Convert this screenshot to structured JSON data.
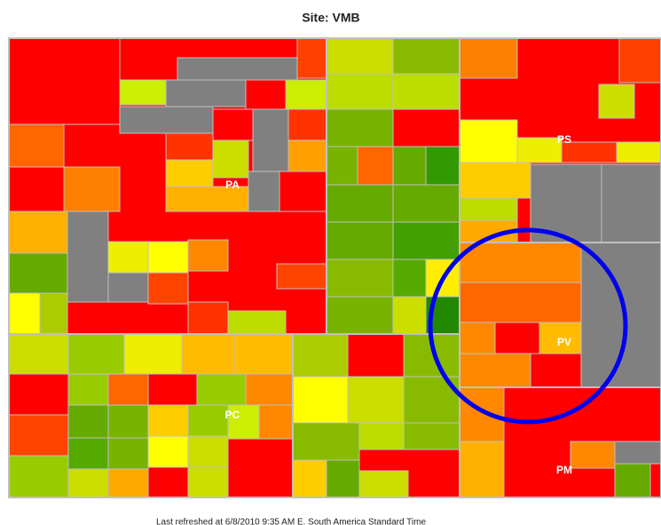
{
  "title": "Site: VMB",
  "groups": [
    {
      "label": "PA"
    },
    {
      "label": "PS"
    },
    {
      "label": "PV"
    },
    {
      "label": "PM"
    },
    {
      "label": "PC"
    }
  ],
  "footer": "Last refreshed at 6/8/2010 9:35 AM E. South America Standard Time"
}
